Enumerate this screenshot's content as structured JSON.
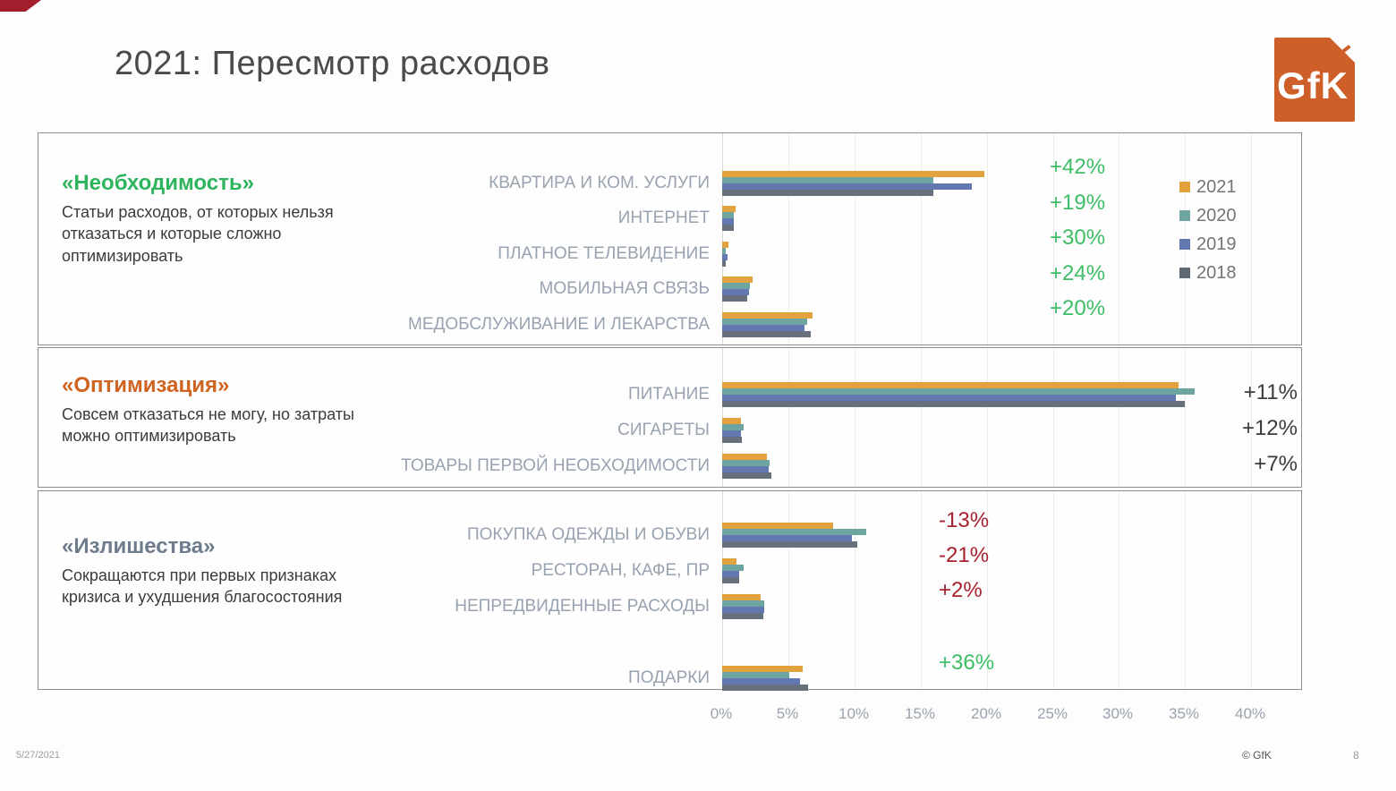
{
  "slide": {
    "title": "2021: Пересмотр расходов",
    "logo_text": "GfK",
    "footer": {
      "date": "5/27/2021",
      "copyright": "© GfK",
      "page": "8"
    }
  },
  "colors": {
    "green": "#3dbd66",
    "red": "#a7212f",
    "dark": "#3b3b3b",
    "brand_orange": "#cf5f28",
    "series_2021": "#e2a23e",
    "series_2020": "#6fa5a0",
    "series_2019": "#6377b1",
    "series_2018": "#67717d"
  },
  "legend": [
    {
      "label": "2021",
      "color": "#e2a23e"
    },
    {
      "label": "2020",
      "color": "#6fa5a0"
    },
    {
      "label": "2019",
      "color": "#6377b1"
    },
    {
      "label": "2018",
      "color": "#5e6973"
    }
  ],
  "chart_data": {
    "type": "bar",
    "orientation": "horizontal",
    "unit": "%",
    "xlim": [
      0,
      44
    ],
    "x_ticks": [
      "0%",
      "5%",
      "10%",
      "15%",
      "20%",
      "25%",
      "30%",
      "35%",
      "40%"
    ],
    "grid": true,
    "series_names": [
      "2021",
      "2020",
      "2019",
      "2018"
    ],
    "sections": [
      {
        "title": "«Необходимость»",
        "title_color": "#2fb45e",
        "description": "Статьи расходов, от которых нельзя отказаться и которые сложно оптимизировать",
        "rows": [
          {
            "label": "КВАРТИРА И КОМ. УСЛУГИ",
            "values": [
              19.8,
              16.0,
              18.9,
              16.0
            ],
            "change": "+42%",
            "change_color": "green"
          },
          {
            "label": "ИНТЕРНЕТ",
            "values": [
              1.0,
              0.9,
              0.9,
              0.9
            ],
            "change": "+19%",
            "change_color": "green"
          },
          {
            "label": "ПЛАТНОЕ ТЕЛЕВИДЕНИЕ",
            "values": [
              0.5,
              0.3,
              0.4,
              0.3
            ],
            "change": "+30%",
            "change_color": "green"
          },
          {
            "label": "МОБИЛЬНАЯ СВЯЗЬ",
            "values": [
              2.3,
              2.1,
              2.0,
              1.9
            ],
            "change": "+24%",
            "change_color": "green"
          },
          {
            "label": "МЕДОБСЛУЖИВАНИЕ И ЛЕКАРСТВА",
            "values": [
              6.8,
              6.4,
              6.2,
              6.7
            ],
            "change": "+20%",
            "change_color": "green"
          }
        ]
      },
      {
        "title": "«Оптимизация»",
        "title_color": "#cf6420",
        "description": "Совсем отказаться не могу, но затраты можно оптимизировать",
        "rows": [
          {
            "label": "ПИТАНИЕ",
            "values": [
              34.5,
              35.7,
              34.3,
              35.0
            ],
            "change": "+11%",
            "change_color": "dark"
          },
          {
            "label": "СИГАРЕТЫ",
            "values": [
              1.4,
              1.6,
              1.4,
              1.5
            ],
            "change": "+12%",
            "change_color": "dark"
          },
          {
            "label": "ТОВАРЫ ПЕРВОЙ НЕОБХОДИМОСТИ",
            "values": [
              3.4,
              3.6,
              3.5,
              3.7
            ],
            "change": "+7%",
            "change_color": "dark"
          }
        ]
      },
      {
        "title": "«Излишества»",
        "title_color": "#6d7b8c",
        "description": "Сокращаются при первых признаках кризиса и ухудшения благосостояния",
        "rows": [
          {
            "label": "ПОКУПКА ОДЕЖДЫ И ОБУВИ",
            "values": [
              8.4,
              10.9,
              9.8,
              10.2
            ],
            "change": "-13%",
            "change_color": "red"
          },
          {
            "label": "РЕСТОРАН, КАФЕ, ПР",
            "values": [
              1.1,
              1.6,
              1.3,
              1.3
            ],
            "change": "-21%",
            "change_color": "red"
          },
          {
            "label": "НЕПРЕДВИДЕННЫЕ РАСХОДЫ",
            "values": [
              2.9,
              3.2,
              3.2,
              3.1
            ],
            "change": "+2%",
            "change_color": "red"
          },
          {
            "label": "ПОДАРКИ",
            "values": [
              6.1,
              5.1,
              5.9,
              6.5
            ],
            "change": "+36%",
            "change_color": "green"
          }
        ]
      }
    ]
  }
}
